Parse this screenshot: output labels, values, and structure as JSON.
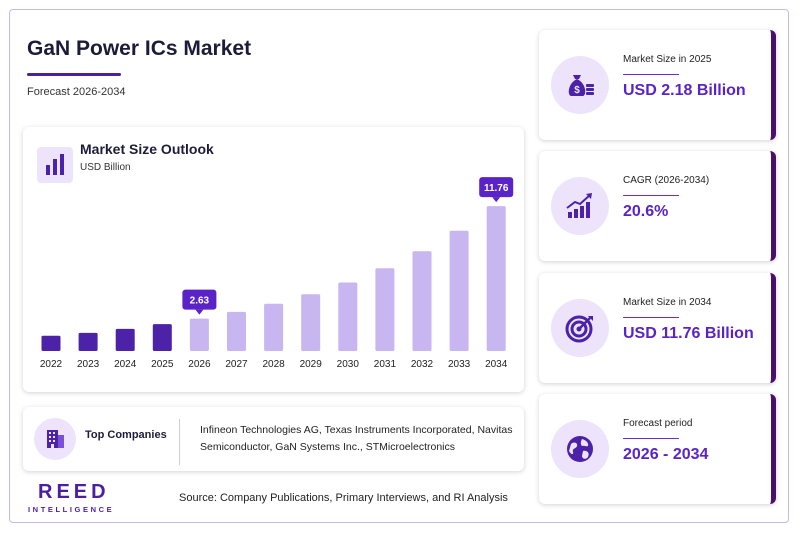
{
  "header": {
    "title": "GaN Power ICs Market",
    "subtitle": "Forecast 2026-2034"
  },
  "chart_card": {
    "title": "Market Size Outlook",
    "unit": "USD Billion"
  },
  "chart_data": {
    "type": "bar",
    "title": "Market Size Outlook",
    "ylabel": "USD Billion",
    "categories": [
      "2022",
      "2023",
      "2024",
      "2025",
      "2026",
      "2027",
      "2028",
      "2029",
      "2030",
      "2031",
      "2032",
      "2033",
      "2034"
    ],
    "values": [
      1.23,
      1.47,
      1.79,
      2.18,
      2.63,
      3.17,
      3.83,
      4.61,
      5.56,
      6.71,
      8.09,
      9.76,
      11.76
    ],
    "historical_through": "2025",
    "annotations": [
      {
        "category": "2026",
        "label": "2.63"
      },
      {
        "category": "2034",
        "label": "11.76"
      }
    ],
    "ylim": [
      0,
      12.5
    ],
    "grid": false,
    "colors": {
      "historical": "#4b22a8",
      "forecast": "#c8b6f0"
    }
  },
  "companies": {
    "label": "Top Companies",
    "text": "Infineon Technologies AG, Texas Instruments Incorporated, Navitas Semiconductor, GaN Systems Inc., STMicroelectronics"
  },
  "footer": {
    "source": "Source: Company Publications, Primary Interviews, and RI Analysis",
    "logo_main": "REED",
    "logo_sub": "INTELLIGENCE"
  },
  "kpis": [
    {
      "label": "Market Size in 2025",
      "value": "USD 2.18 Billion",
      "icon": "money-bag-icon"
    },
    {
      "label": "CAGR (2026-2034)",
      "value": "20.6%",
      "icon": "growth-chart-icon"
    },
    {
      "label": "Market Size in 2034",
      "value": "USD 11.76 Billion",
      "icon": "target-icon"
    },
    {
      "label": "Forecast period",
      "value": "2026 - 2034",
      "icon": "globe-icon"
    }
  ],
  "colors": {
    "accent": "#5a23c8",
    "dark_purple": "#4b1fa0",
    "light_purple": "#ede3fb",
    "callout": "#5a23c8"
  }
}
